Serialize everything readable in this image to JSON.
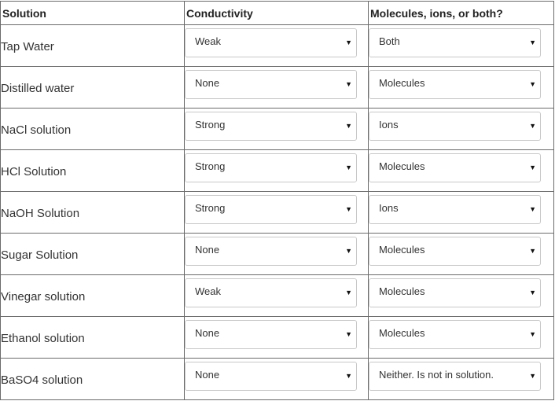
{
  "headers": {
    "solution": "Solution",
    "conductivity": "Conductivity",
    "particles": "Molecules, ions, or both?"
  },
  "rows": [
    {
      "solution": "Tap Water",
      "conductivity": "Weak",
      "particles": "Both"
    },
    {
      "solution": "Distilled water",
      "conductivity": "None",
      "particles": "Molecules"
    },
    {
      "solution": "NaCl solution",
      "conductivity": "Strong",
      "particles": "Ions"
    },
    {
      "solution": "HCl Solution",
      "conductivity": "Strong",
      "particles": "Molecules"
    },
    {
      "solution": "NaOH Solution",
      "conductivity": "Strong",
      "particles": "Ions"
    },
    {
      "solution": "Sugar Solution",
      "conductivity": "None",
      "particles": "Molecules"
    },
    {
      "solution": "Vinegar solution",
      "conductivity": "Weak",
      "particles": "Molecules"
    },
    {
      "solution": "Ethanol solution",
      "conductivity": "None",
      "particles": "Molecules"
    },
    {
      "solution": "BaSO4 solution",
      "conductivity": "None",
      "particles": "Neither. Is not in solution."
    }
  ],
  "icons": {
    "dropdown_arrow": "chevron-down-icon",
    "arrow_glyph": "▼"
  }
}
